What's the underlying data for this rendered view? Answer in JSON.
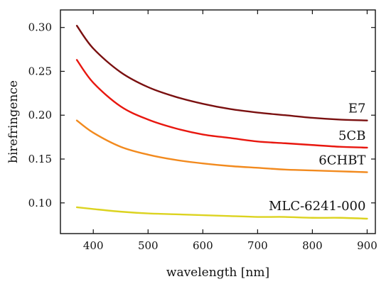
{
  "chart_data": {
    "type": "line",
    "title": "",
    "xlabel": "wavelength [nm]",
    "ylabel": "birefringence",
    "xlim": [
      340,
      915
    ],
    "ylim": [
      0.065,
      0.32
    ],
    "xticks": [
      400,
      500,
      600,
      700,
      800,
      900
    ],
    "yticks": [
      0.1,
      0.15,
      0.2,
      0.25,
      0.3
    ],
    "ytick_labels": [
      "0.10",
      "0.15",
      "0.20",
      "0.25",
      "0.30"
    ],
    "grid": false,
    "legend": "none",
    "series": [
      {
        "name": "E7",
        "color": "#7a1010",
        "x": [
          370,
          400,
          450,
          500,
          550,
          600,
          650,
          700,
          750,
          800,
          850,
          900
        ],
        "y": [
          0.302,
          0.276,
          0.249,
          0.232,
          0.221,
          0.213,
          0.207,
          0.203,
          0.2,
          0.197,
          0.195,
          0.194
        ]
      },
      {
        "name": "5CB",
        "color": "#e8170f",
        "x": [
          370,
          400,
          450,
          500,
          550,
          600,
          650,
          700,
          750,
          800,
          850,
          900
        ],
        "y": [
          0.263,
          0.237,
          0.21,
          0.195,
          0.185,
          0.178,
          0.174,
          0.17,
          0.168,
          0.166,
          0.164,
          0.163
        ]
      },
      {
        "name": "6CHBT",
        "color": "#f28a1e",
        "x": [
          370,
          400,
          450,
          500,
          550,
          600,
          650,
          700,
          750,
          800,
          850,
          900
        ],
        "y": [
          0.194,
          0.18,
          0.164,
          0.155,
          0.149,
          0.145,
          0.142,
          0.14,
          0.138,
          0.137,
          0.136,
          0.135
        ]
      },
      {
        "name": "MLC-6241-000",
        "color": "#dcd320",
        "x": [
          370,
          400,
          450,
          500,
          550,
          600,
          650,
          700,
          750,
          800,
          850,
          900
        ],
        "y": [
          0.095,
          0.093,
          0.09,
          0.088,
          0.087,
          0.086,
          0.085,
          0.084,
          0.084,
          0.083,
          0.083,
          0.082
        ]
      }
    ]
  }
}
